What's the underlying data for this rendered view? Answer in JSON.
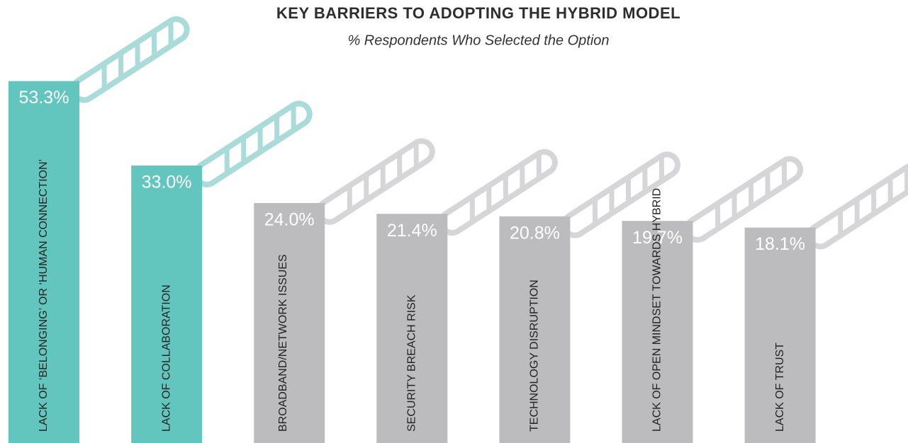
{
  "chart_data": {
    "type": "bar",
    "title": "KEY BARRIERS TO ADOPTING THE HYBRID MODEL",
    "subtitle": "% Respondents Who Selected the Option",
    "categories": [
      "LACK OF ‘BELONGING’ OR ‘HUMAN CONNECTION’",
      "LACK OF COLLABORATION",
      "BROADBAND/NETWORK ISSUES",
      "SECURITY BREACH RISK",
      "TECHNOLOGY DISRUPTION",
      "LACK OF OPEN MINDSET TOWARDS HYBRID",
      "LACK OF TRUST"
    ],
    "values": [
      53.3,
      33.0,
      24.0,
      21.4,
      20.8,
      19.7,
      18.1
    ],
    "value_labels": [
      "53.3%",
      "33.0%",
      "24.0%",
      "21.4%",
      "20.8%",
      "19.7%",
      "18.1%"
    ],
    "colors": [
      "#62c6bf",
      "#62c6bf",
      "#bcbcbe",
      "#bcbcbe",
      "#bcbcbe",
      "#bcbcbe",
      "#bcbcbe"
    ]
  }
}
